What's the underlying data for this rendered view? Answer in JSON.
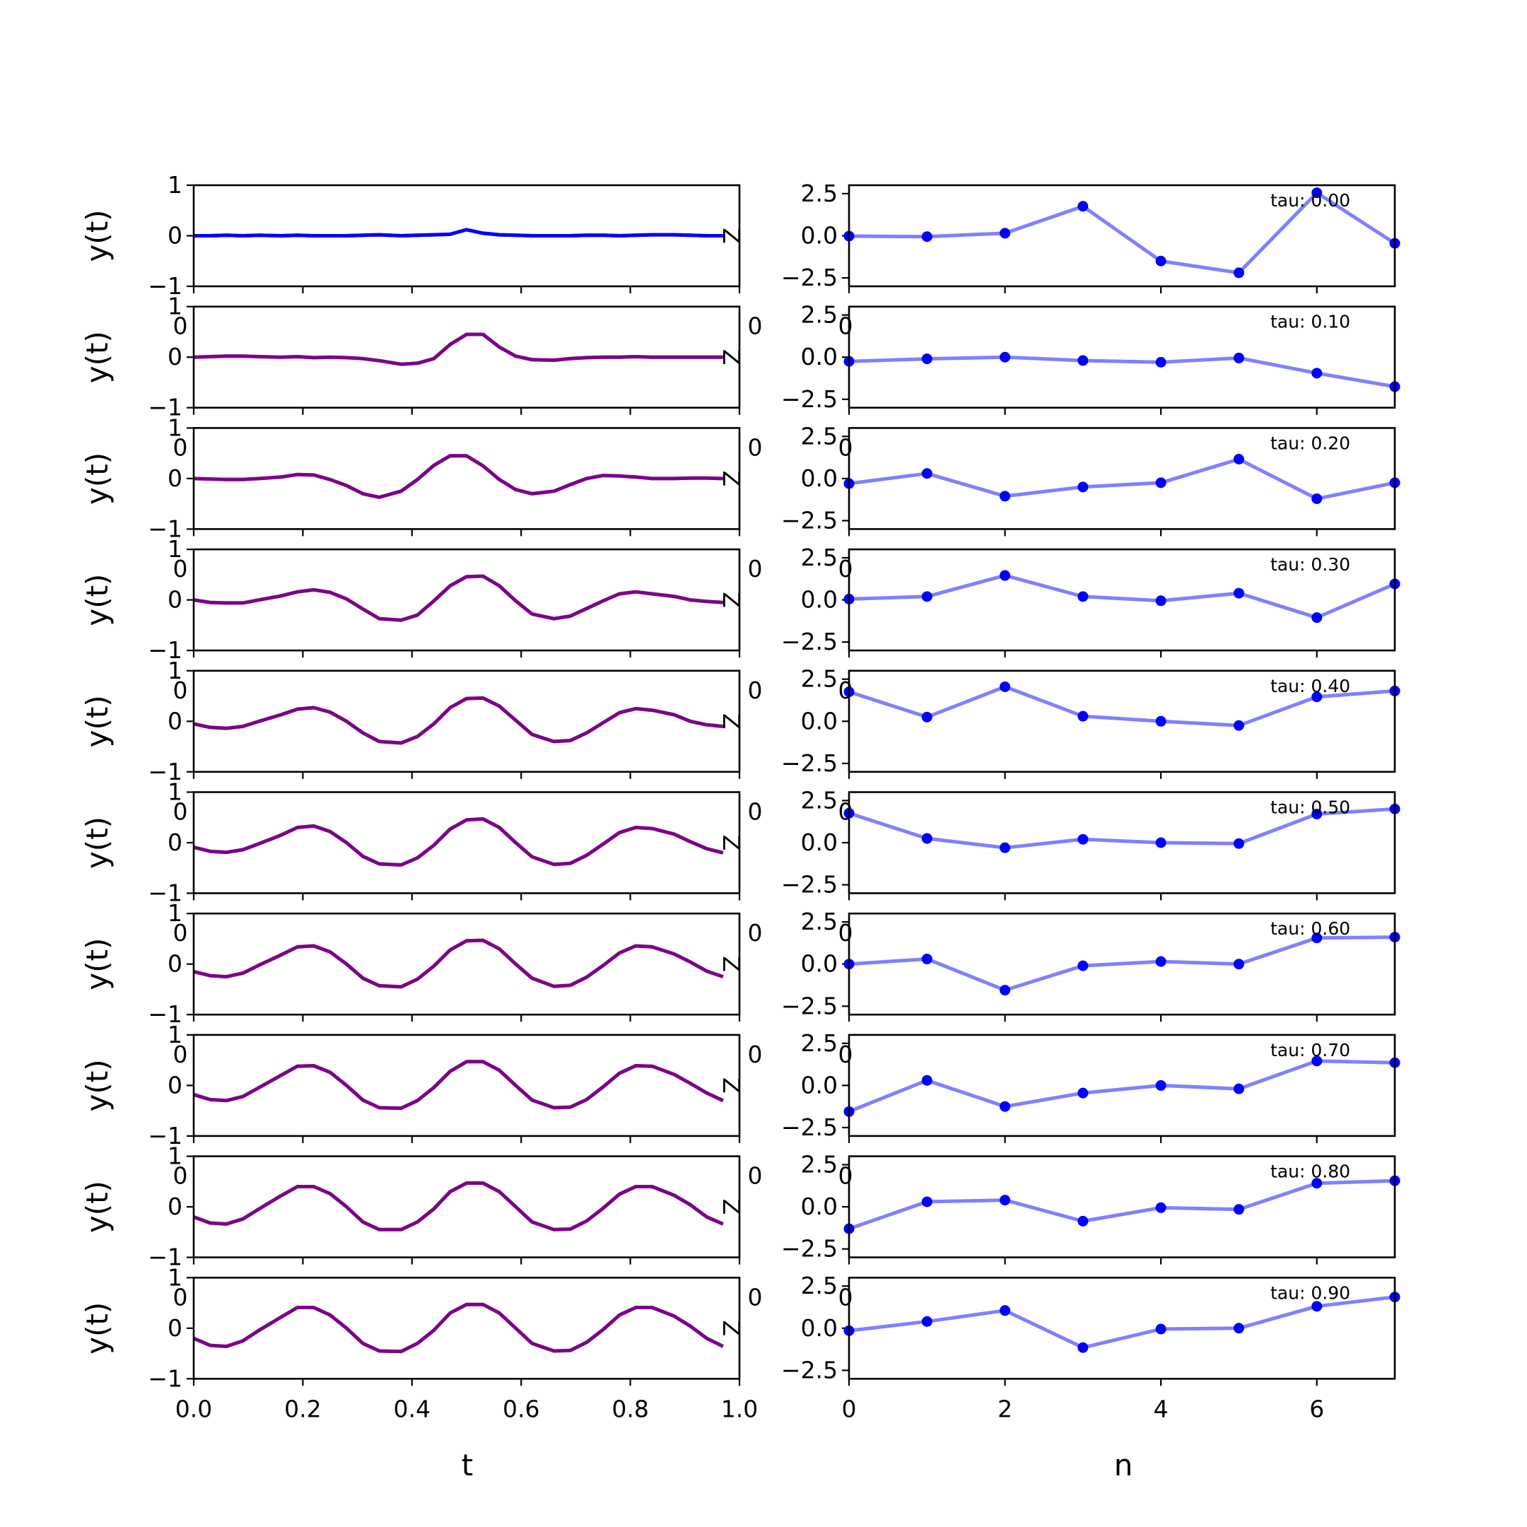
{
  "chart_data": {
    "type": "line",
    "layout": "10 rows x 2 columns of subplots",
    "colors": {
      "y_series_1": "#0000ff",
      "y_series_2": "#ff0000",
      "overlap": "#800080",
      "coefficients": "#8080ff",
      "coefficient_markers": "#0000ff"
    },
    "left_column": {
      "ylabel": "y(t)",
      "xlabel": "t",
      "xlim": [
        0,
        1
      ],
      "ylim": [
        -1,
        1
      ],
      "xticks": [
        "0.0",
        "0.2",
        "0.4",
        "0.6",
        "0.8",
        "1.0"
      ],
      "yticks": [
        "1",
        "0",
        "−1"
      ],
      "t": [
        0.0,
        0.03,
        0.06,
        0.09,
        0.12,
        0.16,
        0.19,
        0.22,
        0.25,
        0.28,
        0.31,
        0.34,
        0.38,
        0.41,
        0.44,
        0.47,
        0.5,
        0.53,
        0.56,
        0.59,
        0.62,
        0.66,
        0.69,
        0.72,
        0.75,
        0.78,
        0.81,
        0.84,
        0.88,
        0.91,
        0.94,
        0.97
      ],
      "overlap_label": "Z"
    },
    "right_column": {
      "xlabel": "n",
      "xlim": [
        0,
        7
      ],
      "ylim": [
        -3,
        3
      ],
      "xticks": [
        "0",
        "2",
        "4",
        "6"
      ],
      "yticks": [
        "2.5",
        "0.0",
        "−2.5"
      ],
      "n": [
        0,
        1,
        2,
        3,
        4,
        5,
        6,
        7
      ]
    },
    "panels": [
      {
        "tau": "tau: 0.00",
        "y": [
          0.0,
          0.0,
          0.01,
          0.0,
          0.01,
          0.0,
          0.01,
          0.0,
          0.0,
          0.0,
          0.01,
          0.02,
          0.0,
          0.01,
          0.02,
          0.03,
          0.12,
          0.05,
          0.02,
          0.01,
          0.0,
          0.0,
          0.0,
          0.01,
          0.01,
          0.0,
          0.01,
          0.02,
          0.02,
          0.01,
          0.0,
          0.0
        ],
        "coef": [
          -0.02,
          -0.05,
          0.15,
          1.75,
          -1.5,
          -2.2,
          2.55,
          -0.45
        ]
      },
      {
        "tau": "tau: 0.10",
        "y": [
          0.0,
          0.01,
          0.02,
          0.02,
          0.01,
          0.0,
          0.01,
          -0.01,
          0.0,
          -0.01,
          -0.03,
          -0.07,
          -0.14,
          -0.12,
          -0.03,
          0.25,
          0.45,
          0.45,
          0.2,
          0.02,
          -0.05,
          -0.06,
          -0.03,
          -0.01,
          0.0,
          0.0,
          0.01,
          0.0,
          0.0,
          0.0,
          0.0,
          0.0
        ],
        "coef": [
          -0.25,
          -0.1,
          0.0,
          -0.2,
          -0.3,
          -0.05,
          -0.95,
          -1.75
        ]
      },
      {
        "tau": "tau: 0.20",
        "y": [
          0.0,
          -0.01,
          -0.02,
          -0.02,
          0.0,
          0.03,
          0.08,
          0.07,
          -0.02,
          -0.14,
          -0.3,
          -0.37,
          -0.25,
          -0.02,
          0.26,
          0.45,
          0.45,
          0.25,
          -0.02,
          -0.22,
          -0.3,
          -0.25,
          -0.12,
          0.0,
          0.06,
          0.05,
          0.03,
          0.0,
          0.0,
          0.01,
          0.01,
          0.0
        ],
        "coef": [
          -0.3,
          0.3,
          -1.05,
          -0.5,
          -0.25,
          1.15,
          -1.2,
          -0.25
        ]
      },
      {
        "tau": "tau: 0.30",
        "y": [
          0.0,
          -0.05,
          -0.06,
          -0.06,
          0.0,
          0.08,
          0.16,
          0.2,
          0.15,
          0.02,
          -0.18,
          -0.37,
          -0.4,
          -0.3,
          -0.02,
          0.28,
          0.46,
          0.47,
          0.28,
          -0.02,
          -0.28,
          -0.37,
          -0.32,
          -0.17,
          -0.02,
          0.12,
          0.16,
          0.12,
          0.07,
          0.0,
          -0.03,
          -0.05
        ],
        "coef": [
          0.05,
          0.2,
          1.45,
          0.2,
          -0.05,
          0.4,
          -1.05,
          0.95
        ]
      },
      {
        "tau": "tau: 0.40",
        "y": [
          -0.05,
          -0.12,
          -0.14,
          -0.1,
          0.0,
          0.13,
          0.24,
          0.27,
          0.18,
          0.0,
          -0.23,
          -0.4,
          -0.43,
          -0.3,
          -0.05,
          0.27,
          0.45,
          0.46,
          0.3,
          0.02,
          -0.26,
          -0.4,
          -0.38,
          -0.23,
          -0.03,
          0.17,
          0.25,
          0.22,
          0.13,
          0.0,
          -0.07,
          -0.1
        ],
        "coef": [
          1.75,
          0.25,
          2.05,
          0.3,
          0.0,
          -0.25,
          1.45,
          1.8
        ]
      },
      {
        "tau": "tau: 0.50",
        "y": [
          -0.09,
          -0.17,
          -0.19,
          -0.14,
          -0.02,
          0.15,
          0.3,
          0.33,
          0.22,
          0.0,
          -0.27,
          -0.42,
          -0.44,
          -0.3,
          -0.05,
          0.27,
          0.45,
          0.47,
          0.3,
          0.0,
          -0.28,
          -0.43,
          -0.41,
          -0.25,
          -0.03,
          0.2,
          0.3,
          0.28,
          0.17,
          0.02,
          -0.12,
          -0.2
        ],
        "coef": [
          1.75,
          0.25,
          -0.3,
          0.2,
          0.0,
          -0.05,
          1.7,
          2.0
        ]
      },
      {
        "tau": "tau: 0.60",
        "y": [
          -0.15,
          -0.23,
          -0.25,
          -0.18,
          -0.02,
          0.18,
          0.34,
          0.36,
          0.24,
          0.0,
          -0.28,
          -0.43,
          -0.45,
          -0.3,
          -0.04,
          0.28,
          0.46,
          0.47,
          0.3,
          0.0,
          -0.28,
          -0.44,
          -0.42,
          -0.26,
          -0.03,
          0.22,
          0.36,
          0.34,
          0.2,
          0.04,
          -0.14,
          -0.25
        ],
        "coef": [
          0.0,
          0.3,
          -1.55,
          -0.1,
          0.15,
          0.0,
          1.55,
          1.6
        ]
      },
      {
        "tau": "tau: 0.70",
        "y": [
          -0.18,
          -0.28,
          -0.3,
          -0.22,
          -0.04,
          0.2,
          0.38,
          0.39,
          0.26,
          0.0,
          -0.29,
          -0.44,
          -0.45,
          -0.3,
          -0.04,
          0.28,
          0.47,
          0.47,
          0.3,
          0.0,
          -0.29,
          -0.44,
          -0.43,
          -0.28,
          -0.03,
          0.24,
          0.39,
          0.38,
          0.22,
          0.04,
          -0.15,
          -0.3
        ],
        "coef": [
          -1.55,
          0.3,
          -1.25,
          -0.45,
          0.0,
          -0.2,
          1.45,
          1.35
        ]
      },
      {
        "tau": "tau: 0.80",
        "y": [
          -0.2,
          -0.32,
          -0.34,
          -0.24,
          -0.04,
          0.22,
          0.4,
          0.4,
          0.26,
          0.0,
          -0.3,
          -0.45,
          -0.45,
          -0.3,
          -0.04,
          0.3,
          0.47,
          0.47,
          0.3,
          0.0,
          -0.3,
          -0.45,
          -0.44,
          -0.28,
          -0.03,
          0.25,
          0.4,
          0.4,
          0.23,
          0.04,
          -0.2,
          -0.34
        ],
        "coef": [
          -1.3,
          0.3,
          0.4,
          -0.85,
          -0.05,
          -0.15,
          1.4,
          1.55
        ]
      },
      {
        "tau": "tau: 0.90",
        "y": [
          -0.2,
          -0.34,
          -0.36,
          -0.25,
          -0.04,
          0.22,
          0.41,
          0.41,
          0.26,
          0.0,
          -0.3,
          -0.45,
          -0.46,
          -0.3,
          -0.04,
          0.3,
          0.47,
          0.47,
          0.3,
          0.0,
          -0.3,
          -0.45,
          -0.44,
          -0.28,
          -0.03,
          0.26,
          0.41,
          0.41,
          0.24,
          0.04,
          -0.2,
          -0.36
        ],
        "coef": [
          -0.15,
          0.4,
          1.05,
          -1.15,
          -0.05,
          0.0,
          1.3,
          1.85
        ]
      }
    ],
    "stray_tick_labels": [
      "0",
      "0",
      "0"
    ]
  }
}
